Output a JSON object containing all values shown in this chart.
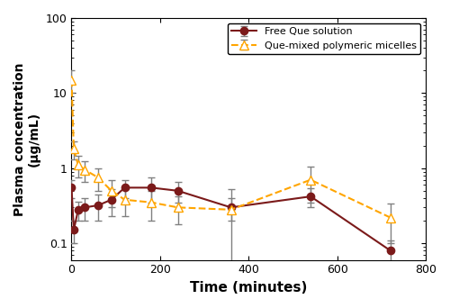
{
  "free_que_x": [
    0,
    5,
    15,
    30,
    60,
    90,
    120,
    180,
    240,
    360,
    540,
    720
  ],
  "free_que_y": [
    0.55,
    0.15,
    0.28,
    0.3,
    0.32,
    0.38,
    0.55,
    0.55,
    0.5,
    0.3,
    0.42,
    0.08
  ],
  "free_que_yerr": [
    0.15,
    0.05,
    0.08,
    0.1,
    0.12,
    0.15,
    0.15,
    0.2,
    0.15,
    0.1,
    0.12,
    0.03
  ],
  "micelle_x": [
    0,
    5,
    15,
    30,
    60,
    90,
    120,
    180,
    240,
    360,
    540,
    720
  ],
  "micelle_y": [
    15.0,
    1.8,
    1.1,
    0.95,
    0.75,
    0.5,
    0.38,
    0.35,
    0.3,
    0.28,
    0.7,
    0.22
  ],
  "micelle_yerr": [
    5.0,
    0.5,
    0.35,
    0.3,
    0.25,
    0.2,
    0.15,
    0.15,
    0.12,
    0.25,
    0.35,
    0.12
  ],
  "free_que_color": "#7B1A1A",
  "micelle_color": "#FFA500",
  "xlabel": "Time (minutes)",
  "ylabel": "Plasma concentration\n(μg/mL)",
  "xlim": [
    0,
    800
  ],
  "ylim_log": [
    0.06,
    100
  ],
  "legend_free": "Free Que solution",
  "legend_micelle": "Que-mixed polymeric micelles",
  "xticks": [
    0,
    200,
    400,
    600,
    800
  ]
}
